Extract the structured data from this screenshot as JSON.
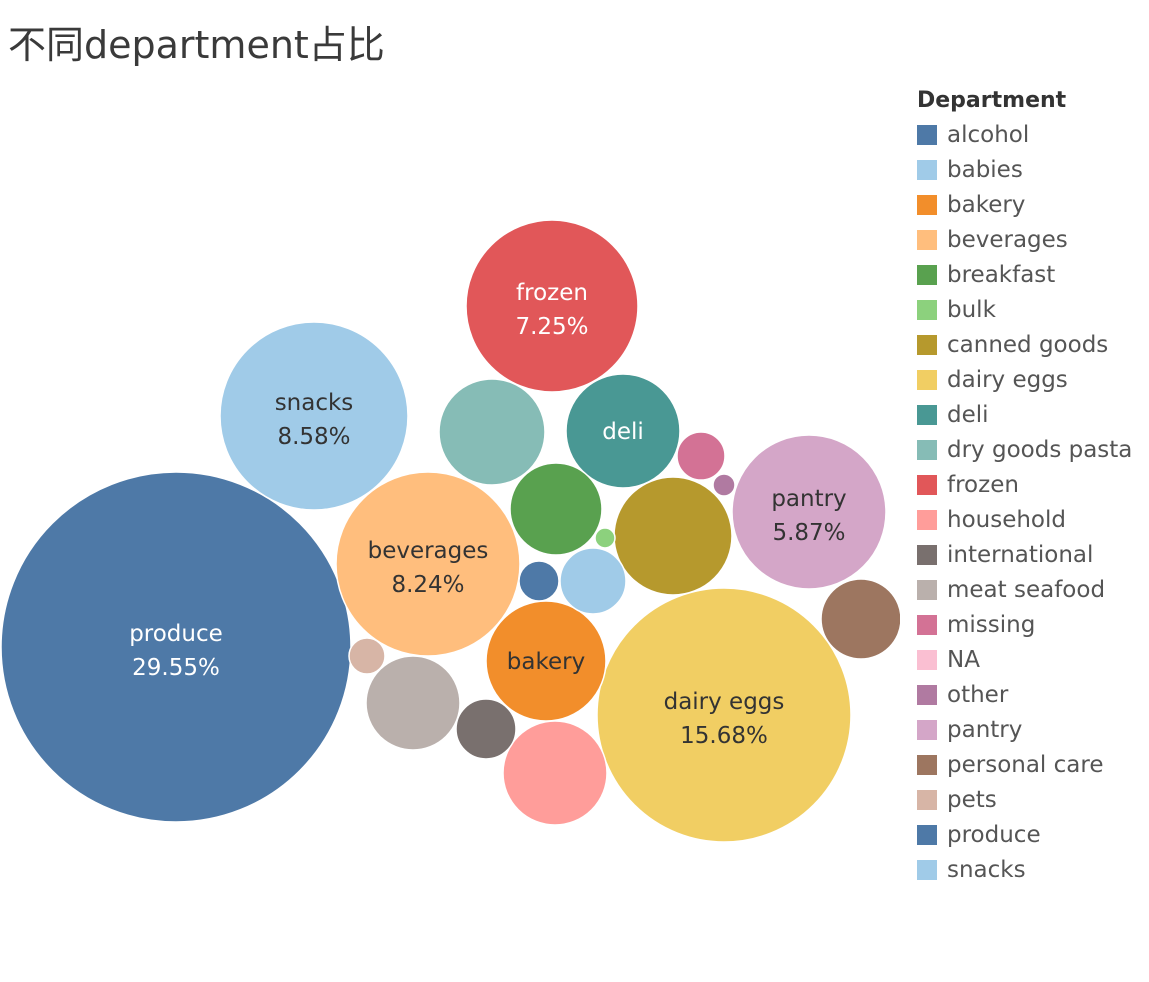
{
  "chart_title": "不同department占比",
  "chart_data": {
    "type": "bubble",
    "title": "不同department占比",
    "legend_title": "Department",
    "legend_placement": "right",
    "bubbles": [
      {
        "name": "produce",
        "share": 29.55,
        "color": "#4e79a7",
        "label_color": "#ffffff",
        "show_label": true,
        "pct_label": "29.55%"
      },
      {
        "name": "dairy eggs",
        "share": 15.68,
        "color": "#f1ce63",
        "label_color": "#333333",
        "show_label": true,
        "pct_label": "15.68%"
      },
      {
        "name": "snacks",
        "share": 8.58,
        "color": "#a0cbe8",
        "label_color": "#333333",
        "show_label": true,
        "pct_label": "8.58%"
      },
      {
        "name": "beverages",
        "share": 8.24,
        "color": "#ffbe7d",
        "label_color": "#333333",
        "show_label": true,
        "pct_label": "8.24%"
      },
      {
        "name": "frozen",
        "share": 7.25,
        "color": "#e15759",
        "label_color": "#ffffff",
        "show_label": true,
        "pct_label": "7.25%"
      },
      {
        "name": "pantry",
        "share": 5.87,
        "color": "#d4a6c8",
        "label_color": "#333333",
        "show_label": true,
        "pct_label": "5.87%"
      },
      {
        "name": "bakery",
        "share": 3.6,
        "color": "#f28e2b",
        "label_color": "#333333",
        "show_label": true,
        "pct_label": ""
      },
      {
        "name": "deli",
        "share": 3.3,
        "color": "#499894",
        "label_color": "#ffffff",
        "show_label": true,
        "pct_label": ""
      },
      {
        "name": "canned goods",
        "share": 3.3,
        "color": "#b6992d",
        "show_label": false
      },
      {
        "name": "dry goods pasta",
        "share": 2.7,
        "color": "#86bcb6",
        "show_label": false
      },
      {
        "name": "household",
        "share": 2.7,
        "color": "#ff9d9a",
        "show_label": false
      },
      {
        "name": "breakfast",
        "share": 2.2,
        "color": "#59a14f",
        "show_label": false
      },
      {
        "name": "meat seafood",
        "share": 2.2,
        "color": "#bab0ac",
        "show_label": false
      },
      {
        "name": "personal care",
        "share": 1.5,
        "color": "#9d7660",
        "show_label": false
      },
      {
        "name": "babies",
        "share": 1.3,
        "color": "#a0cbe8",
        "show_label": false
      },
      {
        "name": "international",
        "share": 0.8,
        "color": "#79706e",
        "show_label": false
      },
      {
        "name": "missing",
        "share": 0.6,
        "color": "#d37295",
        "show_label": false
      },
      {
        "name": "alcohol",
        "share": 0.5,
        "color": "#4e79a7",
        "show_label": false
      },
      {
        "name": "pets",
        "share": 0.3,
        "color": "#d7b5a6",
        "show_label": false
      },
      {
        "name": "other",
        "share": 0.15,
        "color": "#b07aa1",
        "show_label": false
      },
      {
        "name": "bulk",
        "share": 0.1,
        "color": "#8cd17d",
        "show_label": false
      }
    ],
    "legend": [
      {
        "name": "alcohol",
        "color": "#4e79a7"
      },
      {
        "name": "babies",
        "color": "#a0cbe8"
      },
      {
        "name": "bakery",
        "color": "#f28e2b"
      },
      {
        "name": "beverages",
        "color": "#ffbe7d"
      },
      {
        "name": "breakfast",
        "color": "#59a14f"
      },
      {
        "name": "bulk",
        "color": "#8cd17d"
      },
      {
        "name": "canned goods",
        "color": "#b6992d"
      },
      {
        "name": "dairy eggs",
        "color": "#f1ce63"
      },
      {
        "name": "deli",
        "color": "#499894"
      },
      {
        "name": "dry goods pasta",
        "color": "#86bcb6"
      },
      {
        "name": "frozen",
        "color": "#e15759"
      },
      {
        "name": "household",
        "color": "#ff9d9a"
      },
      {
        "name": "international",
        "color": "#79706e"
      },
      {
        "name": "meat seafood",
        "color": "#bab0ac"
      },
      {
        "name": "missing",
        "color": "#d37295"
      },
      {
        "name": "NA",
        "color": "#fabfd2"
      },
      {
        "name": "other",
        "color": "#b07aa1"
      },
      {
        "name": "pantry",
        "color": "#d4a6c8"
      },
      {
        "name": "personal care",
        "color": "#9d7660"
      },
      {
        "name": "pets",
        "color": "#d7b5a6"
      },
      {
        "name": "produce",
        "color": "#4e79a7"
      },
      {
        "name": "snacks",
        "color": "#a0cbe8"
      }
    ]
  }
}
